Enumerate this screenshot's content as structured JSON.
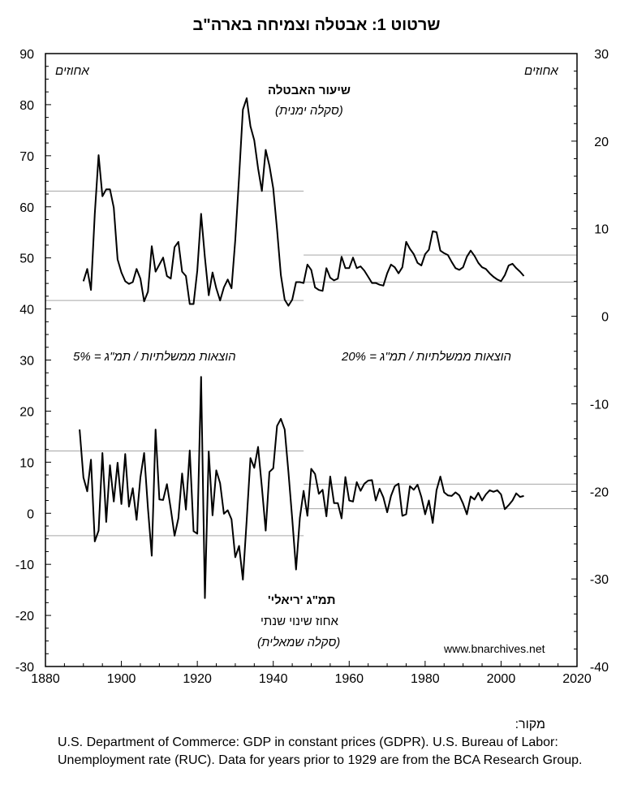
{
  "title": "שרטוט 1: אבטלה וצמיחה בארה\"ב",
  "labels": {
    "left_unit": "אחוזים",
    "right_unit": "אחוזים",
    "unemployment_title": "שיעור האבטלה",
    "unemployment_scale": "(סקלה ימנית)",
    "gdp_title": "תמ\"ג 'ריאלי'",
    "gdp_subtitle": "אחוז שינוי שנתי",
    "gdp_scale": "(סקלה שמאלית)",
    "gov_left": "הוצאות ממשלתיות / תמ\"ג = 5%",
    "gov_right": "הוצאות ממשלתיות / תמ\"ג = 20%",
    "watermark": "www.bnarchives.net"
  },
  "source": {
    "heading": "מקור:",
    "text": "U.S. Department of Commerce: GDP in constant prices (GDPR). U.S. Bureau of Labor: Unemployment rate (RUC). Data for years prior to 1929 are from the BCA Research Group."
  },
  "chart_data": {
    "type": "line",
    "title": "שרטוט 1: אבטלה וצמיחה בארה\"ב",
    "x_axis": {
      "range": [
        1880,
        2020
      ],
      "ticks": [
        1880,
        1900,
        1920,
        1940,
        1960,
        1980,
        2000,
        2020
      ]
    },
    "y_left": {
      "range": [
        -30,
        90
      ],
      "ticks": [
        -30,
        -20,
        -10,
        0,
        10,
        20,
        30,
        40,
        50,
        60,
        70,
        80,
        90
      ],
      "unit": "אחוזים"
    },
    "y_right": {
      "range": [
        -40,
        30
      ],
      "ticks": [
        -40,
        -30,
        -20,
        -10,
        0,
        10,
        20,
        30
      ],
      "unit": "אחוזים"
    },
    "grid": false,
    "series": [
      {
        "name": "שיעור האבטלה",
        "axis": "right",
        "x": [
          1890,
          1891,
          1892,
          1893,
          1894,
          1895,
          1896,
          1897,
          1898,
          1899,
          1900,
          1901,
          1902,
          1903,
          1904,
          1905,
          1906,
          1907,
          1908,
          1909,
          1910,
          1911,
          1912,
          1913,
          1914,
          1915,
          1916,
          1917,
          1918,
          1919,
          1920,
          1921,
          1922,
          1923,
          1924,
          1925,
          1926,
          1927,
          1928,
          1929,
          1930,
          1931,
          1932,
          1933,
          1934,
          1935,
          1936,
          1937,
          1938,
          1939,
          1940,
          1941,
          1942,
          1943,
          1944,
          1945,
          1946,
          1947,
          1948,
          1949,
          1950,
          1951,
          1952,
          1953,
          1954,
          1955,
          1956,
          1957,
          1958,
          1959,
          1960,
          1961,
          1962,
          1963,
          1964,
          1965,
          1966,
          1967,
          1968,
          1969,
          1970,
          1971,
          1972,
          1973,
          1974,
          1975,
          1976,
          1977,
          1978,
          1979,
          1980,
          1981,
          1982,
          1983,
          1984,
          1985,
          1986,
          1987,
          1988,
          1989,
          1990,
          1991,
          1992,
          1993,
          1994,
          1995,
          1996,
          1997,
          1998,
          1999,
          2000,
          2001,
          2002,
          2003,
          2004,
          2005,
          2006
        ],
        "values": [
          4.0,
          5.4,
          3.0,
          11.7,
          18.4,
          13.7,
          14.5,
          14.5,
          12.4,
          6.5,
          5.0,
          4.0,
          3.7,
          3.9,
          5.4,
          4.3,
          1.7,
          2.8,
          8.0,
          5.1,
          5.9,
          6.7,
          4.6,
          4.3,
          7.9,
          8.5,
          5.1,
          4.6,
          1.4,
          1.4,
          5.2,
          11.7,
          6.7,
          2.4,
          5.0,
          3.2,
          1.8,
          3.3,
          4.2,
          3.2,
          8.7,
          15.9,
          23.6,
          24.9,
          21.7,
          20.1,
          16.9,
          14.3,
          19.0,
          17.2,
          14.6,
          9.9,
          4.7,
          1.9,
          1.2,
          1.9,
          3.9,
          3.9,
          3.8,
          5.9,
          5.3,
          3.3,
          3.0,
          2.9,
          5.5,
          4.4,
          4.1,
          4.3,
          6.8,
          5.5,
          5.5,
          6.7,
          5.5,
          5.7,
          5.2,
          4.5,
          3.8,
          3.8,
          3.6,
          3.5,
          4.9,
          5.9,
          5.6,
          4.9,
          5.6,
          8.5,
          7.7,
          7.1,
          6.1,
          5.8,
          7.1,
          7.6,
          9.7,
          9.6,
          7.5,
          7.2,
          7.0,
          6.2,
          5.5,
          5.3,
          5.6,
          6.8,
          7.5,
          6.9,
          6.1,
          5.6,
          5.4,
          4.9,
          4.5,
          4.2,
          4.0,
          4.7,
          5.8,
          6.0,
          5.5,
          5.1,
          4.6
        ]
      },
      {
        "name": "תמ\"ג 'ריאלי'",
        "axis": "left",
        "x": [
          1889,
          1890,
          1891,
          1892,
          1893,
          1894,
          1895,
          1896,
          1897,
          1898,
          1899,
          1900,
          1901,
          1902,
          1903,
          1904,
          1905,
          1906,
          1907,
          1908,
          1909,
          1910,
          1911,
          1912,
          1913,
          1914,
          1915,
          1916,
          1917,
          1918,
          1919,
          1920,
          1921,
          1922,
          1923,
          1924,
          1925,
          1926,
          1927,
          1928,
          1929,
          1930,
          1931,
          1932,
          1933,
          1934,
          1935,
          1936,
          1937,
          1938,
          1939,
          1940,
          1941,
          1942,
          1943,
          1944,
          1945,
          1946,
          1947,
          1948,
          1949,
          1950,
          1951,
          1952,
          1953,
          1954,
          1955,
          1956,
          1957,
          1958,
          1959,
          1960,
          1961,
          1962,
          1963,
          1964,
          1965,
          1966,
          1967,
          1968,
          1969,
          1970,
          1971,
          1972,
          1973,
          1974,
          1975,
          1976,
          1977,
          1978,
          1979,
          1980,
          1981,
          1982,
          1983,
          1984,
          1985,
          1986,
          1987,
          1988,
          1989,
          1990,
          1991,
          1992,
          1993,
          1994,
          1995,
          1996,
          1997,
          1998,
          1999,
          2000,
          2001,
          2002,
          2003,
          2004,
          2005,
          2006
        ],
        "values": [
          16.4,
          7.0,
          4.3,
          10.5,
          -5.5,
          -3.4,
          11.8,
          -1.7,
          9.4,
          2.3,
          9.9,
          1.8,
          11.6,
          1.3,
          4.9,
          -1.3,
          7.0,
          11.8,
          1.0,
          -8.3,
          16.4,
          2.7,
          2.6,
          5.7,
          0.9,
          -4.4,
          -1.0,
          7.8,
          0.7,
          12.3,
          -3.5,
          -4.0,
          26.7,
          -16.6,
          12.1,
          -0.4,
          8.4,
          5.9,
          -0.1,
          0.6,
          -1.2,
          -8.6,
          -6.4,
          -13.0,
          -1.3,
          10.8,
          8.9,
          13.0,
          5.1,
          -3.4,
          8.1,
          8.8,
          17.1,
          18.5,
          16.4,
          8.1,
          -1.1,
          -11.0,
          -0.9,
          4.4,
          -0.5,
          8.7,
          7.7,
          3.8,
          4.6,
          -0.6,
          7.2,
          2.0,
          2.0,
          -1.0,
          7.1,
          2.5,
          2.3,
          6.1,
          4.4,
          5.8,
          6.4,
          6.5,
          2.5,
          4.8,
          3.1,
          0.2,
          3.4,
          5.3,
          5.8,
          -0.5,
          -0.2,
          5.3,
          4.6,
          5.6,
          3.2,
          -0.2,
          2.5,
          -1.9,
          4.5,
          7.2,
          4.1,
          3.5,
          3.4,
          4.1,
          3.5,
          1.9,
          -0.2,
          3.3,
          2.7,
          4.0,
          2.5,
          3.7,
          4.5,
          4.2,
          4.5,
          3.7,
          0.8,
          1.6,
          2.5,
          3.9,
          3.2,
          3.4
        ]
      }
    ],
    "reference_lines": [
      {
        "axis": "right",
        "value": 14.3,
        "x": [
          1880,
          1948
        ]
      },
      {
        "axis": "right",
        "value": 1.8,
        "x": [
          1880,
          1948
        ]
      },
      {
        "axis": "right",
        "value": 7.0,
        "x": [
          1948,
          2020
        ]
      },
      {
        "axis": "right",
        "value": 3.9,
        "x": [
          1948,
          2020
        ]
      },
      {
        "axis": "left",
        "value": 12.2,
        "x": [
          1880,
          1948
        ]
      },
      {
        "axis": "left",
        "value": -4.4,
        "x": [
          1880,
          1948
        ]
      },
      {
        "axis": "left",
        "value": 5.7,
        "x": [
          1948,
          2020
        ]
      },
      {
        "axis": "left",
        "value": 0.9,
        "x": [
          1948,
          2020
        ]
      }
    ]
  }
}
